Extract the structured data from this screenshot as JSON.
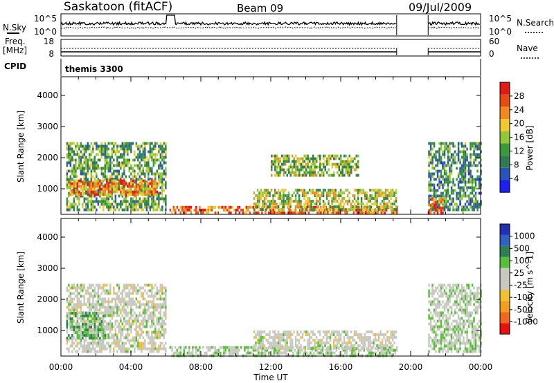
{
  "header": {
    "station": "Saskatoon (fitACF)",
    "beam": "Beam 09",
    "date": "09/Jul/2009"
  },
  "noise_panel": {
    "left_label": "N.Sky",
    "left_ticks": [
      "10^5",
      "10^0"
    ],
    "right_label": "N.Search",
    "right_ticks": [
      "10^5",
      "10^0"
    ]
  },
  "freq_panel": {
    "left_label_1": "Freq.",
    "left_label_2": "[MHz]",
    "left_ticks": [
      "18",
      "8"
    ],
    "right_label": "Nave",
    "right_ticks": [
      "60",
      "0"
    ]
  },
  "cpid_panel": {
    "label": "CPID",
    "value": "themis 3300"
  },
  "colors": {
    "power_scale": [
      "#1e1ef0",
      "#2a52b8",
      "#2f7a50",
      "#3a9a3a",
      "#90c83a",
      "#f0c830",
      "#f08a20",
      "#e84a14",
      "#e01a14"
    ],
    "velocity_scale": [
      "#e81010",
      "#f06820",
      "#f0a020",
      "#f0c030",
      "#c8c8c0",
      "#c8c8c0",
      "#58c038",
      "#2f8050",
      "#3060c0",
      "#2030b0"
    ]
  },
  "chart_data": [
    {
      "type": "heatmap",
      "name": "power",
      "ylabel": "Slant Range [km]",
      "yticks": [
        "1000",
        "2000",
        "3000",
        "4000"
      ],
      "xlim": [
        0,
        24
      ],
      "ylim": [
        180,
        4600
      ],
      "colorbar": {
        "label": "Power [dB]",
        "ticks": [
          "4",
          "8",
          "12",
          "16",
          "20",
          "24",
          "28"
        ],
        "range": [
          0,
          30
        ]
      },
      "regions": [
        {
          "t": [
            0.3,
            6.0
          ],
          "r": [
            300,
            2500
          ],
          "value": 12
        },
        {
          "t": [
            0.5,
            5.5
          ],
          "r": [
            800,
            1300
          ],
          "value": 22
        },
        {
          "t": [
            6.2,
            19.2
          ],
          "r": [
            200,
            450
          ],
          "value": 24
        },
        {
          "t": [
            11.0,
            19.2
          ],
          "r": [
            300,
            1000
          ],
          "value": 16
        },
        {
          "t": [
            12.0,
            17.0
          ],
          "r": [
            1400,
            2100
          ],
          "value": 14
        },
        {
          "t": [
            21.0,
            24.0
          ],
          "r": [
            300,
            2500
          ],
          "value": 10
        },
        {
          "t": [
            21.0,
            21.8
          ],
          "r": [
            200,
            700
          ],
          "value": 26
        }
      ]
    },
    {
      "type": "heatmap",
      "name": "velocity",
      "ylabel": "Slant Range [km]",
      "yticks": [
        "1000",
        "2000",
        "3000",
        "4000"
      ],
      "xlim": [
        0,
        24
      ],
      "ylim": [
        180,
        4600
      ],
      "colorbar": {
        "label": "Velocity [m s^-1]",
        "ticks": [
          "1000",
          "500",
          "100",
          "25",
          "-25",
          "-100",
          "-500",
          "-1000"
        ],
        "range": [
          -1000,
          1000
        ]
      },
      "regions": [
        {
          "t": [
            0.3,
            6.0
          ],
          "r": [
            300,
            2500
          ],
          "value": 0
        },
        {
          "t": [
            0.3,
            2.5
          ],
          "r": [
            800,
            1600
          ],
          "value": 300
        },
        {
          "t": [
            6.2,
            19.2
          ],
          "r": [
            200,
            500
          ],
          "value": 150
        },
        {
          "t": [
            11.0,
            19.2
          ],
          "r": [
            400,
            1000
          ],
          "value": 0
        },
        {
          "t": [
            21.0,
            24.0
          ],
          "r": [
            300,
            2500
          ],
          "value": 100
        }
      ]
    },
    {
      "type": "line",
      "name": "noise",
      "xlim": [
        0,
        24
      ],
      "gaps": [
        [
          19.2,
          21.0
        ]
      ]
    }
  ],
  "time_axis": {
    "ticks": [
      "00:00",
      "04:00",
      "08:00",
      "12:00",
      "16:00",
      "20:00",
      "00:00"
    ],
    "label": "Time UT"
  }
}
